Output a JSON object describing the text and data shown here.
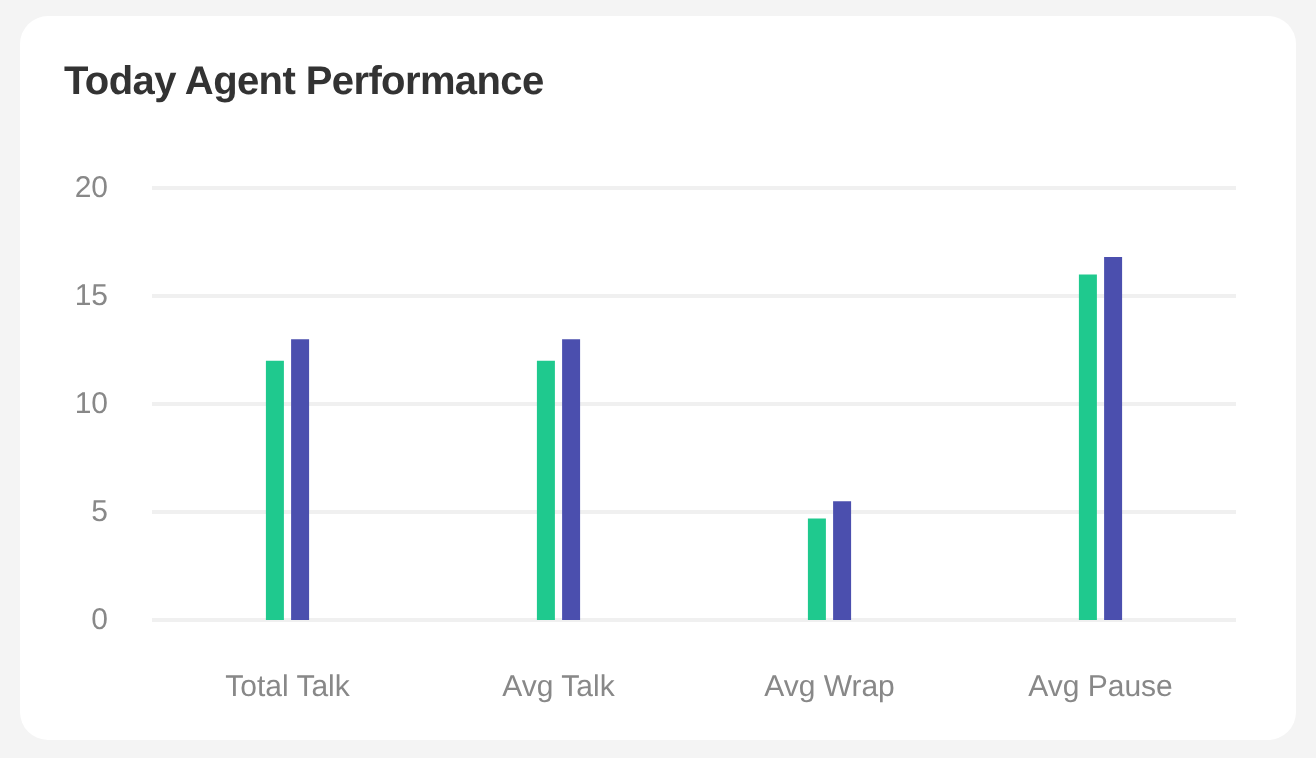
{
  "chart_data": {
    "type": "bar",
    "title": "Today Agent Performance",
    "categories": [
      "Total Talk",
      "Avg Talk",
      "Avg Wrap",
      "Avg Pause"
    ],
    "series": [
      {
        "color": "#1fc98e",
        "values": [
          12,
          12,
          4.7,
          16
        ]
      },
      {
        "color": "#4b4fae",
        "values": [
          13,
          13,
          5.5,
          16.8
        ]
      }
    ],
    "ylim": [
      0,
      20
    ],
    "yticks": [
      0,
      5,
      10,
      15,
      20
    ],
    "grid": "y"
  }
}
